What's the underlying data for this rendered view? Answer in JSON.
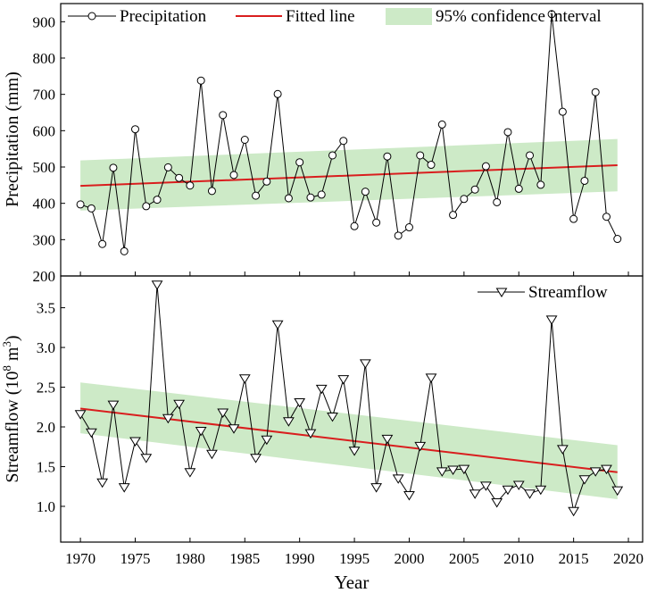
{
  "chart_data": [
    {
      "type": "line",
      "panel": "top",
      "ylabel": "Precipitation (mm)",
      "ylim": [
        200,
        950
      ],
      "yticks": [
        200,
        300,
        400,
        500,
        600,
        700,
        800,
        900
      ],
      "legend": {
        "placement": "top",
        "series_label": "Precipitation",
        "fit_label": "Fitted line",
        "ci_label": "95%  confidence interval"
      },
      "series": [
        {
          "name": "Precipitation",
          "x": [
            1970,
            1971,
            1972,
            1973,
            1974,
            1975,
            1976,
            1977,
            1978,
            1979,
            1980,
            1981,
            1982,
            1983,
            1984,
            1985,
            1986,
            1987,
            1988,
            1989,
            1990,
            1991,
            1992,
            1993,
            1994,
            1995,
            1996,
            1997,
            1998,
            1999,
            2000,
            2001,
            2002,
            2003,
            2004,
            2005,
            2006,
            2007,
            2008,
            2009,
            2010,
            2011,
            2012,
            2013,
            2014,
            2015,
            2016,
            2017,
            2018,
            2019
          ],
          "values": [
            397,
            386,
            288,
            498,
            268,
            604,
            392,
            410,
            499,
            470,
            449,
            738,
            434,
            643,
            478,
            575,
            421,
            460,
            701,
            414,
            513,
            416,
            424,
            532,
            572,
            337,
            432,
            347,
            529,
            311,
            334,
            532,
            506,
            617,
            368,
            412,
            438,
            502,
            403,
            596,
            440,
            532,
            451,
            921,
            652,
            357,
            462,
            706,
            363,
            302
          ]
        }
      ],
      "fit_line": {
        "x": [
          1970,
          2019
        ],
        "y": [
          448,
          505
        ]
      },
      "confidence_band": {
        "x": [
          1970,
          2019
        ],
        "upper": [
          518,
          577
        ],
        "lower": [
          380,
          433
        ]
      }
    },
    {
      "type": "line",
      "panel": "bottom",
      "ylabel": "Streamflow (10",
      "ylabel_sup1": "8",
      "ylabel_mid": " m",
      "ylabel_sup2": "3",
      "ylabel_end": ")",
      "ylim": [
        0.55,
        3.9
      ],
      "yticks": [
        1.0,
        1.5,
        2.0,
        2.5,
        3.0,
        3.5
      ],
      "ytick_labels": [
        "1.0",
        "1.5",
        "2.0",
        "2.5",
        "3.0",
        "3.5"
      ],
      "legend": {
        "placement": "top-right",
        "series_label": "Streamflow"
      },
      "series": [
        {
          "name": "Streamflow",
          "x": [
            1970,
            1971,
            1972,
            1973,
            1974,
            1975,
            1976,
            1977,
            1978,
            1979,
            1980,
            1981,
            1982,
            1983,
            1984,
            1985,
            1986,
            1987,
            1988,
            1989,
            1990,
            1991,
            1992,
            1993,
            1994,
            1995,
            1996,
            1997,
            1998,
            1999,
            2000,
            2001,
            2002,
            2003,
            2004,
            2005,
            2006,
            2007,
            2008,
            2009,
            2010,
            2011,
            2012,
            2013,
            2014,
            2015,
            2016,
            2017,
            2018,
            2019
          ],
          "values": [
            2.16,
            1.93,
            1.3,
            2.28,
            1.24,
            1.82,
            1.61,
            3.79,
            2.11,
            2.29,
            1.43,
            1.95,
            1.66,
            2.18,
            1.98,
            2.61,
            1.61,
            1.84,
            3.29,
            2.07,
            2.31,
            1.92,
            2.48,
            2.13,
            2.6,
            1.7,
            2.8,
            1.24,
            1.85,
            1.35,
            1.14,
            1.76,
            2.62,
            1.44,
            1.46,
            1.47,
            1.16,
            1.26,
            1.05,
            1.21,
            1.27,
            1.16,
            1.21,
            3.35,
            1.72,
            0.94,
            1.34,
            1.44,
            1.47,
            1.2
          ]
        }
      ],
      "fit_line": {
        "x": [
          1970,
          2019
        ],
        "y": [
          2.23,
          1.43
        ]
      },
      "confidence_band": {
        "x": [
          1970,
          2019
        ],
        "upper": [
          2.56,
          1.77
        ],
        "lower": [
          1.92,
          1.09
        ]
      }
    }
  ],
  "xaxis": {
    "xlabel": "Year",
    "xlim": [
      1968.2,
      2021.3
    ],
    "xticks": [
      1970,
      1975,
      1980,
      1985,
      1990,
      1995,
      2000,
      2005,
      2010,
      2015,
      2020
    ]
  },
  "colors": {
    "fit_line": "#d91e1e",
    "band": "#cdeac7",
    "series": "#000000"
  }
}
